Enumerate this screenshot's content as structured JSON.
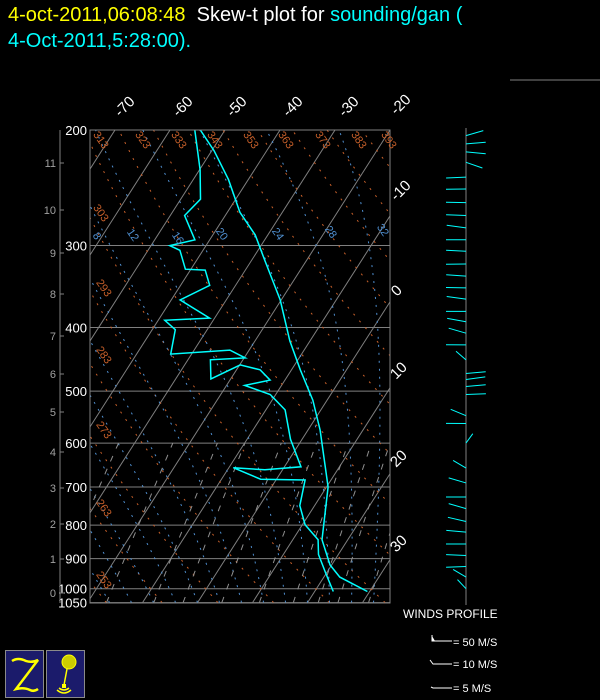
{
  "header": {
    "datetime": "4-oct-2011,06:08:48",
    "title_text": "Skew-t plot for",
    "source": "sounding/gan (",
    "sounding_time": "4-Oct-2011,5:28:00)."
  },
  "colors": {
    "background": "#000000",
    "temperature": "#00ffff",
    "dewpoint": "#00ffff",
    "isotherm": "#808080",
    "isobar": "#808080",
    "dry_adiabat": "#c8602a",
    "moist_adiabat": "#4f8fd0",
    "mixing_ratio": "#909090",
    "wind": "#00ffff",
    "datetime": "#ffff00"
  },
  "chart_data": {
    "type": "line",
    "subtype": "skew-t log-p",
    "pressure_ticks": [
      "200",
      "300",
      "400",
      "500",
      "600",
      "700",
      "800",
      "900",
      "1000",
      "1050"
    ],
    "height_ticks_km": [
      "11",
      "10",
      "9",
      "8",
      "7",
      "6",
      "5",
      "4",
      "3",
      "2",
      "1",
      "0"
    ],
    "temperature_ticks_top": [
      "-70",
      "-60",
      "-50",
      "-40",
      "-30",
      "-20"
    ],
    "temperature_ticks_right": [
      "-10",
      "0",
      "10",
      "20",
      "30"
    ],
    "dry_adiabat_labels": [
      "313",
      "323",
      "333",
      "343",
      "353",
      "363",
      "373",
      "383",
      "393",
      "303",
      "293",
      "283",
      "273",
      "263",
      "253"
    ],
    "moist_adiabat_labels": [
      "8",
      "12",
      "16",
      "20",
      "24",
      "28",
      "32"
    ],
    "pressure_range_hpa": [
      1050,
      200
    ],
    "series": [
      {
        "key": "temperature",
        "points": [
          [
            1010,
            29.6
          ],
          [
            960,
            22.9
          ],
          [
            920,
            19.7
          ],
          [
            842,
            15.3
          ],
          [
            700,
            10.3
          ],
          [
            573,
            2.2
          ],
          [
            516,
            -2.6
          ],
          [
            464,
            -8.4
          ],
          [
            419,
            -13.7
          ],
          [
            363,
            -20.2
          ],
          [
            316,
            -27.6
          ],
          [
            289,
            -32.3
          ],
          [
            267,
            -37.7
          ],
          [
            238,
            -43.6
          ],
          [
            215,
            -49.6
          ],
          [
            200,
            -54.5
          ]
        ]
      },
      {
        "key": "dewpoint",
        "points": [
          [
            1010,
            23.4
          ],
          [
            951,
            20.1
          ],
          [
            887,
            16.4
          ],
          [
            842,
            14.6
          ],
          [
            799,
            10.5
          ],
          [
            747,
            7.3
          ],
          [
            683,
            5.3
          ],
          [
            681,
            -2.9
          ],
          [
            654,
            -9.2
          ],
          [
            659,
            -3.2
          ],
          [
            652,
            3.0
          ],
          [
            592,
            -2.1
          ],
          [
            534,
            -6.5
          ],
          [
            506,
            -11.0
          ],
          [
            490,
            -16.7
          ],
          [
            481,
            -12.7
          ],
          [
            464,
            -15.7
          ],
          [
            456,
            -19.9
          ],
          [
            479,
            -23.6
          ],
          [
            448,
            -25.9
          ],
          [
            445,
            -19.8
          ],
          [
            433,
            -23.5
          ],
          [
            439,
            -33.8
          ],
          [
            403,
            -35.8
          ],
          [
            390,
            -38.8
          ],
          [
            387,
            -30.9
          ],
          [
            363,
            -38.4
          ],
          [
            345,
            -34.7
          ],
          [
            327,
            -37.3
          ],
          [
            326,
            -41.0
          ],
          [
            305,
            -44.2
          ],
          [
            300,
            -46.6
          ],
          [
            294,
            -42.7
          ],
          [
            270,
            -47.4
          ],
          [
            255,
            -46.4
          ],
          [
            230,
            -49.9
          ],
          [
            200,
            -55.5
          ]
        ]
      }
    ],
    "winds": [
      {
        "p": 204,
        "dir": 60
      },
      {
        "p": 210,
        "dir": 80
      },
      {
        "p": 216,
        "dir": 100
      },
      {
        "p": 224,
        "dir": 125
      },
      {
        "p": 236,
        "dir": 265
      },
      {
        "p": 246,
        "dir": 268
      },
      {
        "p": 258,
        "dir": 272
      },
      {
        "p": 270,
        "dir": 275
      },
      {
        "p": 282,
        "dir": 285
      },
      {
        "p": 294,
        "dir": 270
      },
      {
        "p": 306,
        "dir": 275
      },
      {
        "p": 320,
        "dir": 268
      },
      {
        "p": 334,
        "dir": 278
      },
      {
        "p": 348,
        "dir": 272
      },
      {
        "p": 362,
        "dir": 285
      },
      {
        "p": 378,
        "dir": 270
      },
      {
        "p": 392,
        "dir": 290
      },
      {
        "p": 408,
        "dir": 300
      },
      {
        "p": 425,
        "dir": 270
      },
      {
        "p": 448,
        "dir": 330
      },
      {
        "p": 470,
        "dir": 80
      },
      {
        "p": 480,
        "dir": 75
      },
      {
        "p": 492,
        "dir": 80
      },
      {
        "p": 506,
        "dir": 85
      },
      {
        "p": 545,
        "dir": 310
      },
      {
        "p": 560,
        "dir": 270
      },
      {
        "p": 600,
        "dir": 20
      },
      {
        "p": 655,
        "dir": 320
      },
      {
        "p": 690,
        "dir": 300
      },
      {
        "p": 725,
        "dir": 270
      },
      {
        "p": 755,
        "dir": 300
      },
      {
        "p": 790,
        "dir": 295
      },
      {
        "p": 820,
        "dir": 280
      },
      {
        "p": 855,
        "dir": 270
      },
      {
        "p": 890,
        "dir": 275
      },
      {
        "p": 925,
        "dir": 265
      },
      {
        "p": 960,
        "dir": 320
      },
      {
        "p": 1000,
        "dir": 335
      }
    ]
  },
  "legend": {
    "title": "WINDS PROFILE",
    "items": [
      {
        "label": "= 50 M/S"
      },
      {
        "label": "= 10 M/S"
      },
      {
        "label": "= 5 M/S"
      }
    ]
  },
  "logos": [
    {
      "icon": "z-letter-logo"
    },
    {
      "icon": "weather-balloon-logo"
    }
  ]
}
